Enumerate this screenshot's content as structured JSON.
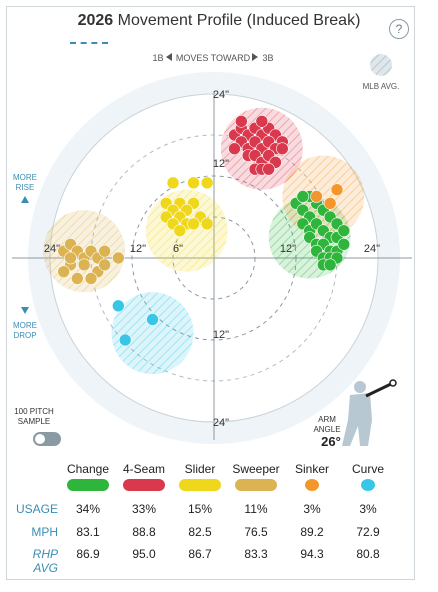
{
  "header": {
    "year": "2026",
    "title": "Movement Profile (Induced Break)",
    "help_icon": "question-circle-icon",
    "help_glyph": "?"
  },
  "chart_labels": {
    "moves_toward_left": "1B",
    "moves_toward_center": "MOVES TOWARD",
    "moves_toward_right": "3B",
    "mlb_avg": "MLB AVG.",
    "more_rise_1": "MORE",
    "more_rise_2": "RISE",
    "more_drop_1": "MORE",
    "more_drop_2": "DROP",
    "sample_1": "100 PITCH",
    "sample_2": "SAMPLE",
    "arm_angle_label": "ARM",
    "arm_angle_label2": "ANGLE",
    "arm_angle_value": "26°",
    "ring_labels": {
      "top24": "24\"",
      "top12": "12\"",
      "bottom12": "12\"",
      "bottom24": "24\"",
      "left24": "24\"",
      "left12": "12\"",
      "left6": "6\"",
      "right12": "12\"",
      "right24": "24\""
    }
  },
  "chart_data": {
    "type": "scatter",
    "xlim": [
      -30,
      30
    ],
    "ylim": [
      -30,
      30
    ],
    "rings": [
      6,
      12,
      24
    ],
    "series": [
      {
        "name": "Change",
        "color": "#2fb53c",
        "mlb_avg": {
          "x": 14,
          "y": 3,
          "r": 6
        },
        "points": [
          [
            12,
            8
          ],
          [
            13,
            7
          ],
          [
            14,
            6
          ],
          [
            15,
            8
          ],
          [
            16,
            7
          ],
          [
            17,
            6
          ],
          [
            18,
            5
          ],
          [
            13,
            5
          ],
          [
            14,
            4
          ],
          [
            15,
            5
          ],
          [
            16,
            4
          ],
          [
            17,
            3
          ],
          [
            18,
            3
          ],
          [
            19,
            4
          ],
          [
            14,
            3
          ],
          [
            15,
            2
          ],
          [
            16,
            2
          ],
          [
            17,
            1
          ],
          [
            18,
            1
          ],
          [
            19,
            2
          ],
          [
            15,
            1
          ],
          [
            16,
            0
          ],
          [
            17,
            0
          ],
          [
            18,
            0
          ],
          [
            16,
            -1
          ],
          [
            17,
            -1
          ],
          [
            14,
            9
          ],
          [
            13,
            9
          ]
        ]
      },
      {
        "name": "4-Seam",
        "color": "#d9384d",
        "mlb_avg": {
          "x": 7,
          "y": 16,
          "r": 6
        },
        "points": [
          [
            3,
            18
          ],
          [
            4,
            19
          ],
          [
            5,
            18
          ],
          [
            6,
            19
          ],
          [
            7,
            18
          ],
          [
            8,
            19
          ],
          [
            9,
            18
          ],
          [
            10,
            17
          ],
          [
            4,
            17
          ],
          [
            5,
            16
          ],
          [
            6,
            17
          ],
          [
            7,
            16
          ],
          [
            8,
            17
          ],
          [
            9,
            16
          ],
          [
            10,
            16
          ],
          [
            5,
            15
          ],
          [
            6,
            15
          ],
          [
            7,
            14
          ],
          [
            8,
            15
          ],
          [
            9,
            14
          ],
          [
            6,
            13
          ],
          [
            7,
            13
          ],
          [
            8,
            13
          ],
          [
            4,
            20
          ],
          [
            7,
            20
          ],
          [
            3,
            16
          ]
        ]
      },
      {
        "name": "Slider",
        "color": "#efd71b",
        "mlb_avg": {
          "x": -4,
          "y": 4,
          "r": 6
        },
        "points": [
          [
            -6,
            11
          ],
          [
            -3,
            11
          ],
          [
            -1,
            11
          ],
          [
            -7,
            8
          ],
          [
            -5,
            8
          ],
          [
            -3,
            8
          ],
          [
            -6,
            7
          ],
          [
            -4,
            7
          ],
          [
            -2,
            6
          ],
          [
            -7,
            6
          ],
          [
            -5,
            6
          ],
          [
            -4,
            5
          ],
          [
            -3,
            5
          ],
          [
            -1,
            5
          ],
          [
            -6,
            5
          ],
          [
            -5,
            4
          ]
        ]
      },
      {
        "name": "Sweeper",
        "color": "#dcb352",
        "mlb_avg": {
          "x": -19,
          "y": 1,
          "r": 6
        },
        "points": [
          [
            -22,
            1
          ],
          [
            -21,
            2
          ],
          [
            -20,
            1
          ],
          [
            -19,
            0
          ],
          [
            -18,
            1
          ],
          [
            -17,
            0
          ],
          [
            -16,
            1
          ],
          [
            -14,
            0
          ],
          [
            -21,
            -1
          ],
          [
            -19,
            -1
          ],
          [
            -17,
            -2
          ],
          [
            -20,
            -3
          ],
          [
            -18,
            -3
          ],
          [
            -22,
            -2
          ],
          [
            -21,
            0
          ],
          [
            -16,
            -1
          ]
        ]
      },
      {
        "name": "Sinker",
        "color": "#f3972c",
        "mlb_avg": {
          "x": 16,
          "y": 9,
          "r": 6
        },
        "points": [
          [
            18,
            10
          ],
          [
            15,
            9
          ],
          [
            17,
            8
          ]
        ]
      },
      {
        "name": "Curve",
        "color": "#38c6e6",
        "mlb_avg": {
          "x": -9,
          "y": -11,
          "r": 6
        },
        "points": [
          [
            -14,
            -7
          ],
          [
            -9,
            -9
          ],
          [
            -13,
            -12
          ]
        ]
      }
    ]
  },
  "table": {
    "usage_label": "USAGE",
    "mph_label": "MPH",
    "rhp_label": "RHP AVG",
    "pitches": [
      {
        "name": "Change",
        "color": "#2fb53c",
        "usage": "34%",
        "mph": "83.1",
        "rhp": "86.9"
      },
      {
        "name": "4-Seam",
        "color": "#d9384d",
        "usage": "33%",
        "mph": "88.8",
        "rhp": "95.0"
      },
      {
        "name": "Slider",
        "color": "#efd71b",
        "usage": "15%",
        "mph": "82.5",
        "rhp": "86.7"
      },
      {
        "name": "Sweeper",
        "color": "#dcb352",
        "usage": "11%",
        "mph": "76.5",
        "rhp": "83.3"
      },
      {
        "name": "Sinker",
        "color": "#f3972c",
        "usage": "3%",
        "mph": "89.2",
        "rhp": "94.3"
      },
      {
        "name": "Curve",
        "color": "#38c6e6",
        "usage": "3%",
        "mph": "72.9",
        "rhp": "80.8"
      }
    ]
  }
}
